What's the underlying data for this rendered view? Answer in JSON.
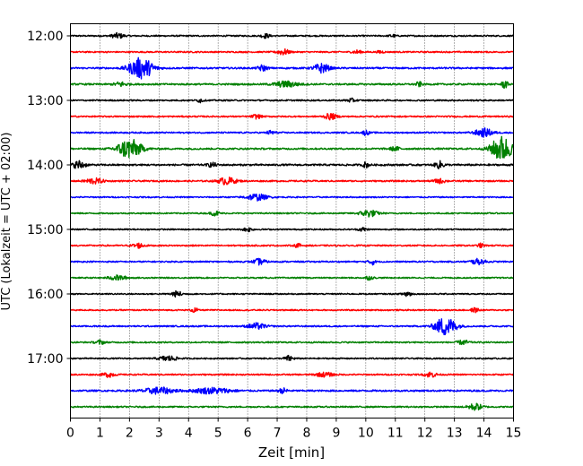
{
  "chart_data": {
    "type": "line",
    "title": "",
    "xlabel": "Zeit  [min]",
    "ylabel": "UTC (Lokalzeit = UTC + 02:00)",
    "xlim": [
      0,
      15
    ],
    "x_ticks": [
      0,
      1,
      2,
      3,
      4,
      5,
      6,
      7,
      8,
      9,
      10,
      11,
      12,
      13,
      14,
      15
    ],
    "x_tick_labels": [
      "0",
      "1",
      "2",
      "3",
      "4",
      "5",
      "6",
      "7",
      "8",
      "9",
      "10",
      "11",
      "12",
      "13",
      "14",
      "15"
    ],
    "y_tick_labels": [
      "12:00",
      "13:00",
      "14:00",
      "15:00",
      "16:00",
      "17:00"
    ],
    "y_tick_rows": [
      0,
      4,
      8,
      12,
      16,
      20
    ],
    "vertical_grid": true,
    "grid_style": "dotted",
    "colors": [
      "#000000",
      "#ff0000",
      "#0000ff",
      "#008000"
    ],
    "rows": [
      {
        "time": "12:00",
        "color": "#000000",
        "noise": 0.12,
        "events": [
          [
            1.6,
            0.2,
            0.45
          ],
          [
            6.6,
            0.15,
            0.35
          ],
          [
            10.9,
            0.1,
            0.25
          ]
        ]
      },
      {
        "time": "12:15",
        "color": "#ff0000",
        "noise": 0.12,
        "events": [
          [
            7.2,
            0.2,
            0.5
          ],
          [
            9.7,
            0.15,
            0.3
          ],
          [
            10.5,
            0.1,
            0.25
          ]
        ]
      },
      {
        "time": "12:30",
        "color": "#0000ff",
        "noise": 0.14,
        "events": [
          [
            2.4,
            0.4,
            1.8
          ],
          [
            6.5,
            0.15,
            0.5
          ],
          [
            8.5,
            0.25,
            0.8
          ]
        ]
      },
      {
        "time": "12:45",
        "color": "#008000",
        "noise": 0.14,
        "events": [
          [
            1.7,
            0.2,
            0.4
          ],
          [
            7.3,
            0.4,
            0.5
          ],
          [
            11.8,
            0.1,
            0.4
          ],
          [
            14.7,
            0.1,
            0.7
          ]
        ]
      },
      {
        "time": "13:00",
        "color": "#000000",
        "noise": 0.12,
        "events": [
          [
            4.4,
            0.1,
            0.35
          ],
          [
            9.5,
            0.15,
            0.3
          ]
        ]
      },
      {
        "time": "13:15",
        "color": "#ff0000",
        "noise": 0.12,
        "events": [
          [
            6.3,
            0.15,
            0.35
          ],
          [
            8.8,
            0.2,
            0.5
          ]
        ]
      },
      {
        "time": "13:30",
        "color": "#0000ff",
        "noise": 0.12,
        "events": [
          [
            6.8,
            0.15,
            0.35
          ],
          [
            10.0,
            0.1,
            0.45
          ],
          [
            14.0,
            0.3,
            0.7
          ]
        ]
      },
      {
        "time": "13:45",
        "color": "#008000",
        "noise": 0.14,
        "events": [
          [
            2.0,
            0.4,
            1.7
          ],
          [
            11.0,
            0.2,
            0.3
          ],
          [
            14.6,
            0.35,
            2.2
          ]
        ]
      },
      {
        "time": "14:00",
        "color": "#000000",
        "noise": 0.15,
        "events": [
          [
            0.3,
            0.2,
            0.7
          ],
          [
            4.8,
            0.15,
            0.35
          ],
          [
            10.0,
            0.1,
            0.45
          ],
          [
            12.5,
            0.15,
            0.6
          ]
        ]
      },
      {
        "time": "14:15",
        "color": "#ff0000",
        "noise": 0.13,
        "events": [
          [
            0.8,
            0.3,
            0.45
          ],
          [
            5.3,
            0.3,
            0.6
          ],
          [
            12.5,
            0.2,
            0.35
          ]
        ]
      },
      {
        "time": "14:30",
        "color": "#0000ff",
        "noise": 0.11,
        "events": [
          [
            6.3,
            0.35,
            0.55
          ]
        ]
      },
      {
        "time": "14:45",
        "color": "#008000",
        "noise": 0.11,
        "events": [
          [
            4.9,
            0.15,
            0.4
          ],
          [
            10.1,
            0.3,
            0.6
          ]
        ]
      },
      {
        "time": "15:00",
        "color": "#000000",
        "noise": 0.11,
        "events": [
          [
            6.0,
            0.15,
            0.35
          ],
          [
            9.9,
            0.15,
            0.3
          ]
        ]
      },
      {
        "time": "15:15",
        "color": "#ff0000",
        "noise": 0.12,
        "events": [
          [
            2.3,
            0.2,
            0.4
          ],
          [
            7.7,
            0.1,
            0.35
          ],
          [
            13.9,
            0.1,
            0.35
          ]
        ]
      },
      {
        "time": "15:30",
        "color": "#0000ff",
        "noise": 0.12,
        "events": [
          [
            6.4,
            0.2,
            0.5
          ],
          [
            10.2,
            0.1,
            0.6
          ],
          [
            13.8,
            0.25,
            0.45
          ]
        ]
      },
      {
        "time": "15:45",
        "color": "#008000",
        "noise": 0.11,
        "events": [
          [
            1.6,
            0.3,
            0.4
          ],
          [
            10.1,
            0.15,
            0.3
          ]
        ]
      },
      {
        "time": "16:00",
        "color": "#000000",
        "noise": 0.11,
        "events": [
          [
            3.6,
            0.2,
            0.45
          ],
          [
            11.4,
            0.15,
            0.5
          ]
        ]
      },
      {
        "time": "16:15",
        "color": "#ff0000",
        "noise": 0.11,
        "events": [
          [
            4.2,
            0.1,
            0.45
          ],
          [
            13.7,
            0.15,
            0.35
          ]
        ]
      },
      {
        "time": "16:30",
        "color": "#0000ff",
        "noise": 0.12,
        "events": [
          [
            6.3,
            0.3,
            0.5
          ],
          [
            12.7,
            0.35,
            1.6
          ]
        ]
      },
      {
        "time": "16:45",
        "color": "#008000",
        "noise": 0.12,
        "events": [
          [
            1.0,
            0.15,
            0.35
          ],
          [
            13.3,
            0.2,
            0.35
          ]
        ]
      },
      {
        "time": "17:00",
        "color": "#000000",
        "noise": 0.11,
        "events": [
          [
            3.3,
            0.3,
            0.45
          ],
          [
            7.4,
            0.15,
            0.45
          ]
        ]
      },
      {
        "time": "17:15",
        "color": "#ff0000",
        "noise": 0.12,
        "events": [
          [
            1.3,
            0.2,
            0.4
          ],
          [
            8.6,
            0.3,
            0.35
          ],
          [
            12.2,
            0.2,
            0.45
          ]
        ]
      },
      {
        "time": "17:30",
        "color": "#0000ff",
        "noise": 0.14,
        "events": [
          [
            3.0,
            0.5,
            0.55
          ],
          [
            4.8,
            0.6,
            0.5
          ],
          [
            7.2,
            0.15,
            0.4
          ]
        ]
      },
      {
        "time": "17:45",
        "color": "#008000",
        "noise": 0.12,
        "events": [
          [
            13.7,
            0.25,
            0.55
          ]
        ]
      }
    ]
  }
}
